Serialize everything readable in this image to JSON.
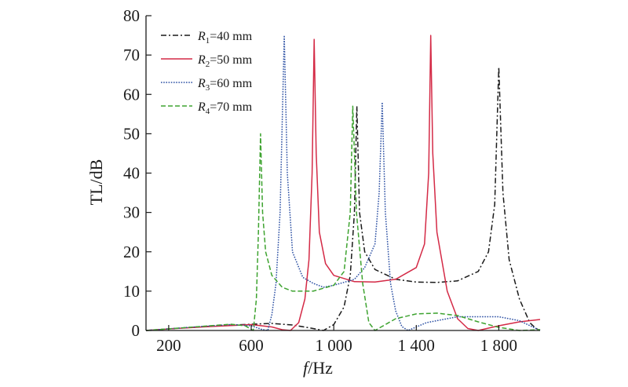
{
  "chart_data": {
    "type": "line",
    "xlabel_italic": "f",
    "xlabel_unit": "/Hz",
    "ylabel": "TL/dB",
    "xlim": [
      90,
      2000
    ],
    "ylim": [
      0,
      80
    ],
    "x_ticks": [
      200,
      600,
      1000,
      1400,
      1800
    ],
    "x_tick_labels": [
      "200",
      "600",
      "1 000",
      "1 400",
      "1 800"
    ],
    "y_ticks": [
      0,
      10,
      20,
      30,
      40,
      50,
      60,
      70,
      80
    ],
    "y_tick_labels": [
      "0",
      "10",
      "20",
      "30",
      "40",
      "50",
      "60",
      "70",
      "80"
    ],
    "grid": false,
    "legend_position": "top-left",
    "series": [
      {
        "label_var": "R",
        "label_sub": "1",
        "label_rest": "=40 mm",
        "color": "#1a1a1a",
        "dash": "7,3,2,3",
        "points": [
          [
            90,
            0
          ],
          [
            200,
            0.4
          ],
          [
            400,
            1.1
          ],
          [
            600,
            1.6
          ],
          [
            700,
            1.8
          ],
          [
            800,
            1.4
          ],
          [
            900,
            0.5
          ],
          [
            950,
            0
          ],
          [
            1000,
            1.5
          ],
          [
            1050,
            6
          ],
          [
            1080,
            14
          ],
          [
            1100,
            30
          ],
          [
            1112,
            57
          ],
          [
            1125,
            30
          ],
          [
            1150,
            20
          ],
          [
            1200,
            15.5
          ],
          [
            1300,
            13
          ],
          [
            1400,
            12.3
          ],
          [
            1500,
            12.2
          ],
          [
            1600,
            12.6
          ],
          [
            1700,
            15
          ],
          [
            1750,
            20
          ],
          [
            1780,
            32
          ],
          [
            1800,
            67
          ],
          [
            1820,
            35
          ],
          [
            1850,
            18
          ],
          [
            1900,
            8
          ],
          [
            1950,
            2
          ],
          [
            1980,
            0.5
          ],
          [
            2000,
            0.2
          ]
        ]
      },
      {
        "label_var": "R",
        "label_sub": "2",
        "label_rest": "=50 mm",
        "color": "#d42a46",
        "dash": "",
        "points": [
          [
            90,
            0
          ],
          [
            200,
            0.4
          ],
          [
            400,
            1
          ],
          [
            600,
            1.5
          ],
          [
            700,
            0.9
          ],
          [
            750,
            0.2
          ],
          [
            790,
            0
          ],
          [
            830,
            2
          ],
          [
            860,
            8
          ],
          [
            880,
            18
          ],
          [
            895,
            40
          ],
          [
            905,
            74
          ],
          [
            915,
            45
          ],
          [
            930,
            25
          ],
          [
            960,
            17
          ],
          [
            1000,
            14
          ],
          [
            1100,
            12.4
          ],
          [
            1200,
            12.3
          ],
          [
            1300,
            13
          ],
          [
            1400,
            16
          ],
          [
            1440,
            22
          ],
          [
            1460,
            40
          ],
          [
            1470,
            75
          ],
          [
            1480,
            45
          ],
          [
            1500,
            25
          ],
          [
            1550,
            10
          ],
          [
            1600,
            3
          ],
          [
            1650,
            0.5
          ],
          [
            1700,
            0
          ],
          [
            1800,
            1.2
          ],
          [
            1900,
            2.2
          ],
          [
            2000,
            2.8
          ]
        ]
      },
      {
        "label_var": "R",
        "label_sub": "3",
        "label_rest": "=60 mm",
        "color": "#2b4fa3",
        "dash": "1.6,1.6",
        "points": [
          [
            90,
            0
          ],
          [
            300,
            0.8
          ],
          [
            500,
            1.5
          ],
          [
            600,
            1.2
          ],
          [
            650,
            0.3
          ],
          [
            680,
            0
          ],
          [
            700,
            4
          ],
          [
            720,
            12
          ],
          [
            740,
            30
          ],
          [
            760,
            75
          ],
          [
            775,
            40
          ],
          [
            800,
            20
          ],
          [
            850,
            13.5
          ],
          [
            900,
            12
          ],
          [
            950,
            11
          ],
          [
            1000,
            11.5
          ],
          [
            1100,
            13
          ],
          [
            1150,
            16
          ],
          [
            1200,
            22
          ],
          [
            1220,
            35
          ],
          [
            1235,
            58
          ],
          [
            1250,
            30
          ],
          [
            1275,
            12
          ],
          [
            1300,
            5
          ],
          [
            1330,
            1
          ],
          [
            1360,
            0
          ],
          [
            1450,
            2
          ],
          [
            1600,
            3.5
          ],
          [
            1800,
            3.5
          ],
          [
            1900,
            2.5
          ],
          [
            1960,
            1
          ],
          [
            2000,
            0
          ]
        ]
      },
      {
        "label_var": "R",
        "label_sub": "4",
        "label_rest": "=70 mm",
        "color": "#3ea330",
        "dash": "6,3",
        "points": [
          [
            90,
            0
          ],
          [
            300,
            0.8
          ],
          [
            500,
            1.6
          ],
          [
            570,
            1.2
          ],
          [
            600,
            0.3
          ],
          [
            610,
            0
          ],
          [
            625,
            8
          ],
          [
            635,
            25
          ],
          [
            645,
            50
          ],
          [
            655,
            30
          ],
          [
            670,
            20
          ],
          [
            700,
            14
          ],
          [
            750,
            11
          ],
          [
            800,
            10
          ],
          [
            900,
            10
          ],
          [
            1000,
            11.5
          ],
          [
            1050,
            15
          ],
          [
            1080,
            30
          ],
          [
            1092,
            57
          ],
          [
            1110,
            30
          ],
          [
            1140,
            12
          ],
          [
            1170,
            2
          ],
          [
            1200,
            0
          ],
          [
            1300,
            3
          ],
          [
            1400,
            4.2
          ],
          [
            1500,
            4.4
          ],
          [
            1600,
            3.8
          ],
          [
            1700,
            2.2
          ],
          [
            1800,
            0.8
          ],
          [
            1900,
            0
          ],
          [
            2000,
            0.2
          ]
        ]
      }
    ]
  }
}
